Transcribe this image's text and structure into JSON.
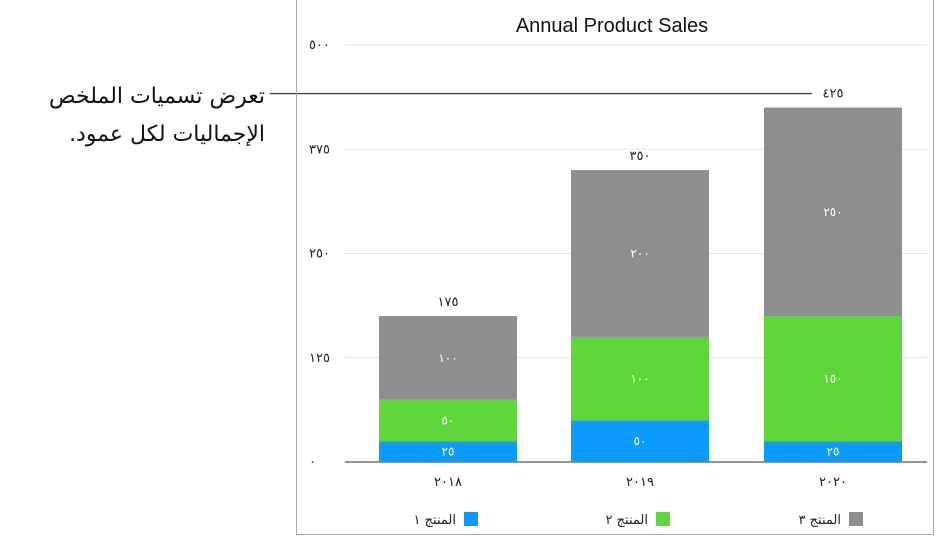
{
  "annotation": {
    "text": "تعرض تسميات الملخص الإجماليات لكل عمود."
  },
  "chart_data": {
    "type": "bar",
    "stacked": true,
    "title": "Annual Product Sales",
    "categories": [
      "٢٠١٨",
      "٢٠١٩",
      "٢٠٢٠"
    ],
    "ylim": [
      0,
      500
    ],
    "yticks": [
      0,
      125,
      250,
      375,
      500
    ],
    "ytick_labels": [
      "٠",
      "١٢٥",
      "٢٥٠",
      "٣٧٥",
      "٥٠٠"
    ],
    "grid": true,
    "legend_position": "bottom",
    "series": [
      {
        "name": "المنتج ١",
        "color": "#0d9bff",
        "values": [
          25,
          50,
          25
        ],
        "labels": [
          "٢٥",
          "٥٠",
          "٢٥"
        ]
      },
      {
        "name": "المنتج ٢",
        "color": "#5ed63a",
        "values": [
          50,
          100,
          150
        ],
        "labels": [
          "٥٠",
          "١٠٠",
          "١٥٠"
        ]
      },
      {
        "name": "المنتج ٣",
        "color": "#8e8e8e",
        "values": [
          100,
          200,
          250
        ],
        "labels": [
          "١٠٠",
          "٢٠٠",
          "٢٥٠"
        ]
      }
    ],
    "totals": [
      175,
      350,
      425
    ],
    "total_labels": [
      "١٧٥",
      "٣٥٠",
      "٤٢٥"
    ]
  }
}
